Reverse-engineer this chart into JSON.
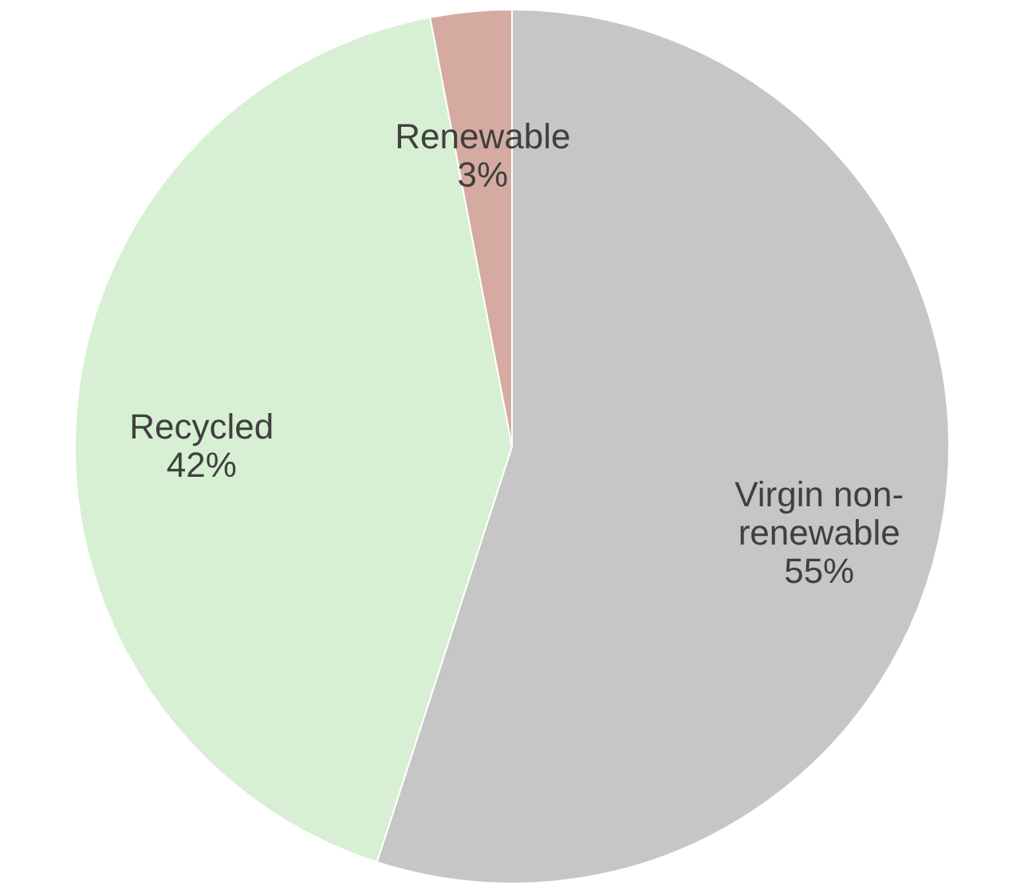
{
  "chart_data": {
    "type": "pie",
    "categories": [
      "Virgin non-renewable",
      "Recycled",
      "Renewable"
    ],
    "values": [
      55,
      42,
      3
    ],
    "colors": [
      "#c6c6c6",
      "#d7efd2",
      "#d5aba1"
    ],
    "value_labels": [
      "55%",
      "42%",
      "3%"
    ],
    "legend": false
  }
}
